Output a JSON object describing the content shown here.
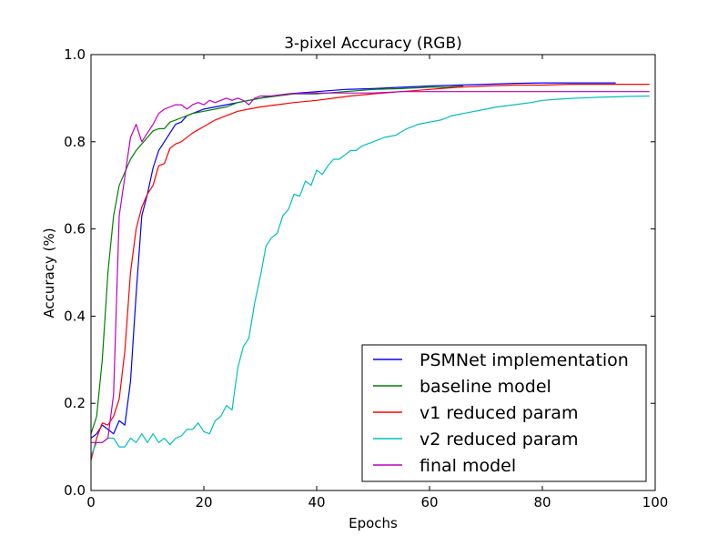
{
  "chart_data": {
    "type": "line",
    "title": "3-pixel Accuracy (RGB)",
    "xlabel": "Epochs",
    "ylabel": "Accuracy (%)",
    "xlim": [
      0,
      100
    ],
    "ylim": [
      0.0,
      1.0
    ],
    "xticks": [
      "0",
      "20",
      "40",
      "60",
      "80",
      "100"
    ],
    "yticks": [
      "0.0",
      "0.2",
      "0.4",
      "0.6",
      "0.8",
      "1.0"
    ],
    "grid": false,
    "legend_position": "lower-right",
    "series": [
      {
        "name": "PSMNet implementation",
        "color": "#0000ff",
        "points": [
          [
            0,
            0.12
          ],
          [
            1,
            0.13
          ],
          [
            2,
            0.15
          ],
          [
            3,
            0.14
          ],
          [
            4,
            0.13
          ],
          [
            5,
            0.16
          ],
          [
            6,
            0.15
          ],
          [
            7,
            0.25
          ],
          [
            8,
            0.45
          ],
          [
            9,
            0.63
          ],
          [
            10,
            0.68
          ],
          [
            11,
            0.74
          ],
          [
            12,
            0.78
          ],
          [
            13,
            0.8
          ],
          [
            14,
            0.82
          ],
          [
            15,
            0.84
          ],
          [
            16,
            0.845
          ],
          [
            17,
            0.86
          ],
          [
            18,
            0.865
          ],
          [
            19,
            0.87
          ],
          [
            20,
            0.875
          ],
          [
            22,
            0.88
          ],
          [
            24,
            0.885
          ],
          [
            26,
            0.89
          ],
          [
            28,
            0.895
          ],
          [
            30,
            0.9
          ],
          [
            32,
            0.905
          ],
          [
            35,
            0.91
          ],
          [
            40,
            0.915
          ],
          [
            45,
            0.92
          ],
          [
            50,
            0.922
          ],
          [
            55,
            0.925
          ],
          [
            60,
            0.928
          ],
          [
            65,
            0.93
          ],
          [
            70,
            0.932
          ],
          [
            75,
            0.934
          ],
          [
            80,
            0.935
          ],
          [
            85,
            0.935
          ],
          [
            90,
            0.935
          ],
          [
            93,
            0.935
          ]
        ]
      },
      {
        "name": "baseline model",
        "color": "#008000",
        "points": [
          [
            0,
            0.13
          ],
          [
            1,
            0.17
          ],
          [
            2,
            0.3
          ],
          [
            3,
            0.5
          ],
          [
            4,
            0.63
          ],
          [
            5,
            0.7
          ],
          [
            6,
            0.73
          ],
          [
            7,
            0.76
          ],
          [
            8,
            0.78
          ],
          [
            9,
            0.795
          ],
          [
            10,
            0.81
          ],
          [
            11,
            0.825
          ],
          [
            12,
            0.83
          ],
          [
            13,
            0.83
          ],
          [
            14,
            0.845
          ],
          [
            15,
            0.85
          ],
          [
            16,
            0.855
          ],
          [
            18,
            0.865
          ],
          [
            20,
            0.87
          ],
          [
            22,
            0.875
          ],
          [
            24,
            0.88
          ],
          [
            26,
            0.89
          ],
          [
            28,
            0.895
          ],
          [
            30,
            0.9
          ],
          [
            33,
            0.905
          ],
          [
            36,
            0.91
          ],
          [
            40,
            0.91
          ],
          [
            45,
            0.915
          ],
          [
            50,
            0.92
          ],
          [
            55,
            0.922
          ],
          [
            60,
            0.925
          ],
          [
            63,
            0.925
          ],
          [
            66,
            0.928
          ]
        ]
      },
      {
        "name": "v1 reduced param",
        "color": "#ff0000",
        "points": [
          [
            0,
            0.07
          ],
          [
            1,
            0.12
          ],
          [
            2,
            0.155
          ],
          [
            3,
            0.15
          ],
          [
            4,
            0.17
          ],
          [
            5,
            0.21
          ],
          [
            6,
            0.32
          ],
          [
            7,
            0.5
          ],
          [
            8,
            0.6
          ],
          [
            9,
            0.65
          ],
          [
            10,
            0.68
          ],
          [
            11,
            0.7
          ],
          [
            12,
            0.745
          ],
          [
            13,
            0.75
          ],
          [
            14,
            0.785
          ],
          [
            15,
            0.795
          ],
          [
            16,
            0.8
          ],
          [
            18,
            0.82
          ],
          [
            20,
            0.835
          ],
          [
            22,
            0.85
          ],
          [
            24,
            0.86
          ],
          [
            26,
            0.87
          ],
          [
            28,
            0.875
          ],
          [
            30,
            0.88
          ],
          [
            33,
            0.885
          ],
          [
            36,
            0.89
          ],
          [
            40,
            0.895
          ],
          [
            43,
            0.9
          ],
          [
            46,
            0.905
          ],
          [
            50,
            0.91
          ],
          [
            55,
            0.915
          ],
          [
            60,
            0.92
          ],
          [
            65,
            0.925
          ],
          [
            70,
            0.928
          ],
          [
            75,
            0.93
          ],
          [
            80,
            0.93
          ],
          [
            85,
            0.932
          ],
          [
            90,
            0.932
          ],
          [
            95,
            0.932
          ],
          [
            99,
            0.932
          ]
        ]
      },
      {
        "name": "v2 reduced param",
        "color": "#00bfbf",
        "points": [
          [
            0,
            0.08
          ],
          [
            1,
            0.11
          ],
          [
            2,
            0.11
          ],
          [
            3,
            0.12
          ],
          [
            4,
            0.12
          ],
          [
            5,
            0.1
          ],
          [
            6,
            0.1
          ],
          [
            7,
            0.12
          ],
          [
            8,
            0.11
          ],
          [
            9,
            0.13
          ],
          [
            10,
            0.11
          ],
          [
            11,
            0.13
          ],
          [
            12,
            0.11
          ],
          [
            13,
            0.12
          ],
          [
            14,
            0.105
          ],
          [
            15,
            0.12
          ],
          [
            16,
            0.125
          ],
          [
            17,
            0.14
          ],
          [
            18,
            0.14
          ],
          [
            19,
            0.155
          ],
          [
            20,
            0.135
          ],
          [
            21,
            0.13
          ],
          [
            22,
            0.16
          ],
          [
            23,
            0.17
          ],
          [
            24,
            0.195
          ],
          [
            25,
            0.185
          ],
          [
            26,
            0.28
          ],
          [
            27,
            0.33
          ],
          [
            28,
            0.35
          ],
          [
            29,
            0.43
          ],
          [
            30,
            0.49
          ],
          [
            31,
            0.56
          ],
          [
            32,
            0.58
          ],
          [
            33,
            0.59
          ],
          [
            34,
            0.63
          ],
          [
            35,
            0.645
          ],
          [
            36,
            0.68
          ],
          [
            37,
            0.675
          ],
          [
            38,
            0.71
          ],
          [
            39,
            0.7
          ],
          [
            40,
            0.735
          ],
          [
            41,
            0.725
          ],
          [
            42,
            0.745
          ],
          [
            43,
            0.76
          ],
          [
            44,
            0.76
          ],
          [
            45,
            0.77
          ],
          [
            46,
            0.78
          ],
          [
            47,
            0.78
          ],
          [
            48,
            0.79
          ],
          [
            50,
            0.8
          ],
          [
            52,
            0.81
          ],
          [
            54,
            0.815
          ],
          [
            56,
            0.83
          ],
          [
            58,
            0.84
          ],
          [
            60,
            0.845
          ],
          [
            62,
            0.85
          ],
          [
            64,
            0.86
          ],
          [
            66,
            0.865
          ],
          [
            68,
            0.87
          ],
          [
            70,
            0.875
          ],
          [
            72,
            0.88
          ],
          [
            75,
            0.885
          ],
          [
            78,
            0.89
          ],
          [
            80,
            0.895
          ],
          [
            83,
            0.898
          ],
          [
            86,
            0.9
          ],
          [
            90,
            0.902
          ],
          [
            95,
            0.904
          ],
          [
            99,
            0.905
          ]
        ]
      },
      {
        "name": "final model",
        "color": "#bf00bf",
        "points": [
          [
            0,
            0.11
          ],
          [
            1,
            0.11
          ],
          [
            2,
            0.11
          ],
          [
            3,
            0.12
          ],
          [
            4,
            0.22
          ],
          [
            5,
            0.63
          ],
          [
            6,
            0.72
          ],
          [
            7,
            0.81
          ],
          [
            8,
            0.84
          ],
          [
            9,
            0.8
          ],
          [
            10,
            0.82
          ],
          [
            11,
            0.84
          ],
          [
            12,
            0.865
          ],
          [
            13,
            0.875
          ],
          [
            14,
            0.88
          ],
          [
            15,
            0.885
          ],
          [
            16,
            0.885
          ],
          [
            17,
            0.875
          ],
          [
            18,
            0.885
          ],
          [
            19,
            0.89
          ],
          [
            20,
            0.885
          ],
          [
            21,
            0.895
          ],
          [
            22,
            0.89
          ],
          [
            23,
            0.895
          ],
          [
            24,
            0.9
          ],
          [
            25,
            0.895
          ],
          [
            26,
            0.9
          ],
          [
            27,
            0.895
          ],
          [
            28,
            0.885
          ],
          [
            29,
            0.9
          ],
          [
            30,
            0.905
          ],
          [
            32,
            0.905
          ],
          [
            35,
            0.91
          ],
          [
            40,
            0.912
          ],
          [
            45,
            0.912
          ],
          [
            50,
            0.912
          ],
          [
            55,
            0.915
          ],
          [
            60,
            0.915
          ],
          [
            65,
            0.915
          ],
          [
            70,
            0.915
          ],
          [
            75,
            0.915
          ],
          [
            80,
            0.915
          ],
          [
            85,
            0.915
          ],
          [
            90,
            0.915
          ],
          [
            95,
            0.915
          ],
          [
            99,
            0.915
          ]
        ]
      }
    ]
  }
}
